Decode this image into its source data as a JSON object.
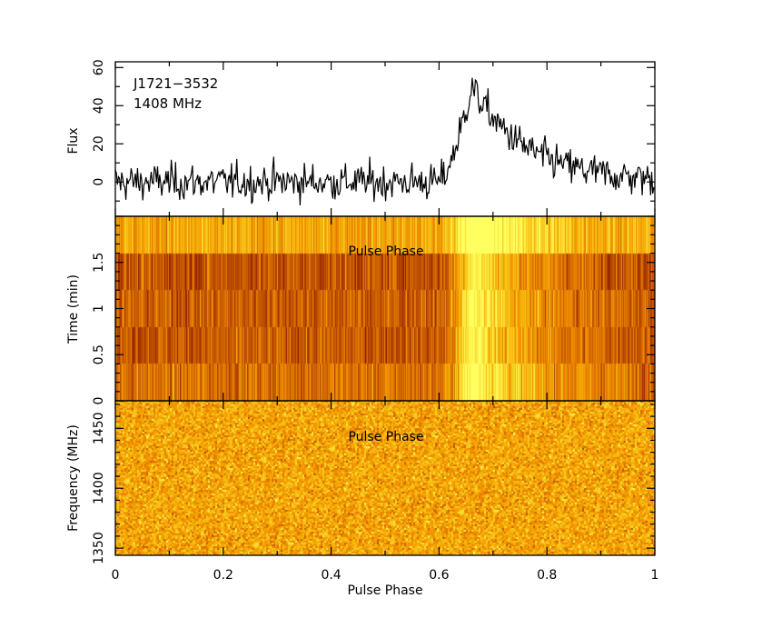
{
  "chart_data": [
    {
      "type": "line",
      "panel": "profile",
      "annotation": [
        "J1721−3532",
        "1408 MHz"
      ],
      "xlabel": "Pulse Phase",
      "ylabel": "Flux",
      "xlim": [
        0,
        1
      ],
      "ylim": [
        -18,
        63
      ],
      "yticks": [
        "0",
        "20",
        "40",
        "60"
      ],
      "n_bins": 512,
      "baseline": 0,
      "noise_rms": 6,
      "pulse": {
        "onset_phase": 0.6,
        "peak_phase": 0.66,
        "peak_flux": 50,
        "decay_to_phase_0.85": 12
      }
    },
    {
      "type": "heatmap",
      "panel": "time-phase",
      "overlay_label": "Pulse Phase",
      "ylabel": "Time (min)",
      "xlim": [
        0,
        1
      ],
      "ylim": [
        0,
        2
      ],
      "yticks": [
        "0",
        "0.5",
        "1",
        "1.5"
      ],
      "n_subints": 5,
      "on_pulse_range": [
        0.6,
        0.72
      ]
    },
    {
      "type": "heatmap",
      "panel": "frequency-phase",
      "overlay_label": "Pulse Phase",
      "ylabel": "Frequency (MHz)",
      "xlim": [
        0,
        1
      ],
      "ylim": [
        1344,
        1473
      ],
      "yticks": [
        "1350",
        "1400",
        "1450"
      ],
      "xticks": [
        "0",
        "0.2",
        "0.4",
        "0.6",
        "0.8",
        "1"
      ]
    }
  ],
  "colors": {
    "line": "#000000",
    "heat_low": "#8a1500",
    "heat_mid": "#f08a00",
    "heat_high": "#ffff60"
  }
}
